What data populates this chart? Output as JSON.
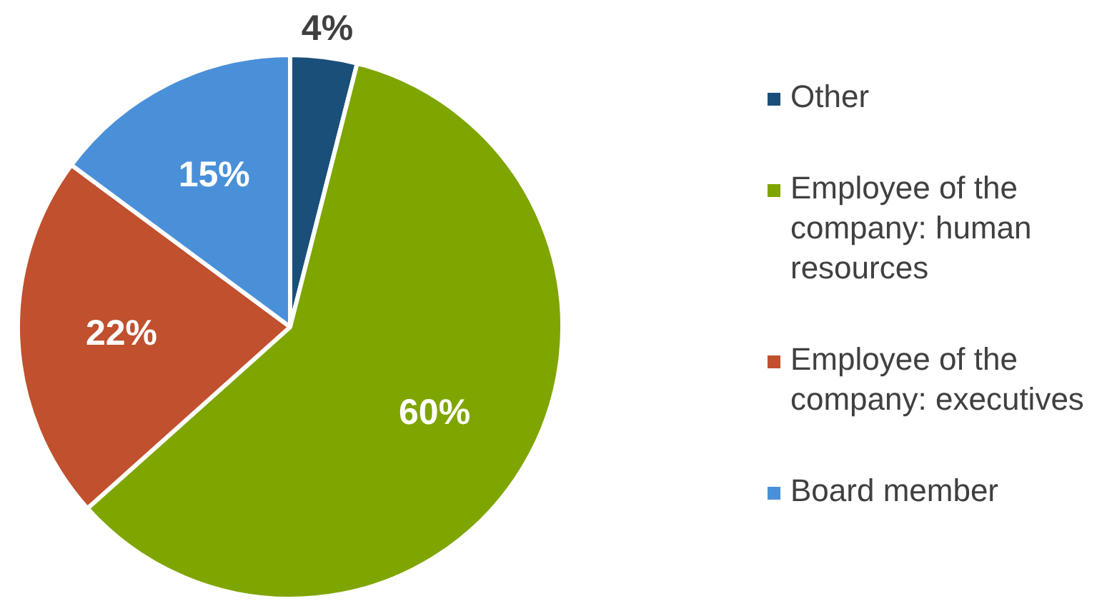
{
  "chart_data": {
    "type": "pie",
    "categories": [
      "Other",
      "Employee of the company: human resources",
      "Employee of the company: executives",
      "Board member"
    ],
    "values": [
      4,
      60,
      22,
      15
    ],
    "colors": [
      "#1a4f7a",
      "#7fa500",
      "#c0502e",
      "#4a90d9"
    ],
    "value_labels": [
      "4%",
      "60%",
      "22%",
      "15%"
    ],
    "legend": "right"
  }
}
